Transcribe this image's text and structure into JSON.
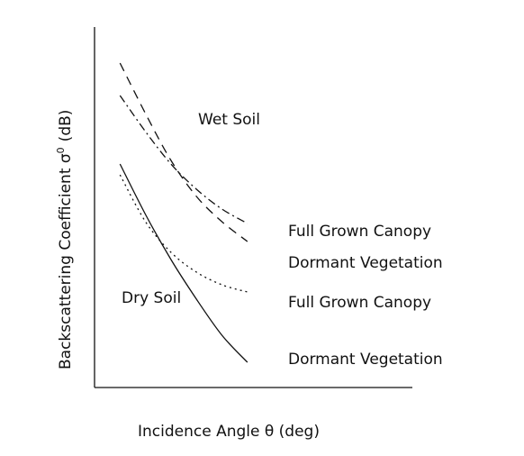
{
  "chart_data": {
    "type": "line",
    "xlabel": "Incidence Angle θ (deg)",
    "ylabel_main": "Backscattering Coefficient σ",
    "ylabel_super": "0",
    "ylabel_unit": "(dB)",
    "grid": false,
    "xticks": false,
    "yticks": false,
    "xlim": [
      0,
      10
    ],
    "ylim": [
      0,
      10
    ],
    "groups": [
      {
        "label": "Wet Soil"
      },
      {
        "label": "Dry Soil"
      }
    ],
    "series": [
      {
        "name": "Full Grown Canopy",
        "group": "Wet Soil",
        "style": "dash-dot",
        "x": [
          1.0,
          2.0,
          3.0,
          4.0,
          5.0,
          6.0
        ],
        "y": [
          8.1,
          7.1,
          6.2,
          5.5,
          4.95,
          4.55
        ]
      },
      {
        "name": "Dormant Vegetation",
        "group": "Wet Soil",
        "style": "dashed",
        "x": [
          1.0,
          2.0,
          3.0,
          4.0,
          5.0,
          6.0
        ],
        "y": [
          9.0,
          7.6,
          6.3,
          5.3,
          4.6,
          4.05
        ]
      },
      {
        "name": "Full Grown Canopy",
        "group": "Dry Soil",
        "style": "dotted",
        "x": [
          1.0,
          2.0,
          3.0,
          4.0,
          5.0,
          6.0
        ],
        "y": [
          5.9,
          4.6,
          3.75,
          3.2,
          2.85,
          2.65
        ]
      },
      {
        "name": "Dormant Vegetation",
        "group": "Dry Soil",
        "style": "solid",
        "x": [
          1.0,
          2.0,
          3.0,
          4.0,
          5.0,
          6.0
        ],
        "y": [
          6.2,
          4.8,
          3.55,
          2.45,
          1.45,
          0.7
        ]
      }
    ]
  }
}
